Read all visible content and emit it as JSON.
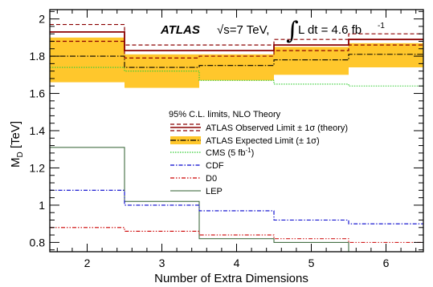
{
  "chart_data": {
    "type": "line",
    "xlabel": "Number of Extra Dimensions",
    "ylabel_main": "M",
    "ylabel_sub": "D",
    "ylabel_unit": " [TeV]",
    "xlim": [
      1.5,
      6.5
    ],
    "ylim": [
      0.75,
      2.05
    ],
    "x_ticks": [
      2,
      3,
      4,
      5,
      6
    ],
    "x_tick_labels": [
      "2",
      "3",
      "4",
      "5",
      "6"
    ],
    "y_ticks": [
      0.8,
      1.0,
      1.2,
      1.4,
      1.6,
      1.8,
      2.0
    ],
    "y_tick_labels": [
      "0.8",
      "1",
      "1.2",
      "1.4",
      "1.6",
      "1.8",
      "2"
    ],
    "header": {
      "experiment": "ATLAS",
      "energy": "√s=7 TeV,",
      "lumi_integral": "∫",
      "lumi": "L dt = 4.6 fb",
      "lumi_exp": "-1"
    },
    "legend_title": "95% C.L. limits, NLO Theory",
    "series": [
      {
        "name": "ATLAS Observed Limit ± 1σ (theory)",
        "key": "obs",
        "color": "#8b0000",
        "values": [
          1.93,
          1.83,
          1.83,
          1.86,
          1.89
        ],
        "theory_up": [
          1.97,
          1.86,
          1.86,
          1.89,
          1.92
        ],
        "theory_down": [
          1.88,
          1.79,
          1.8,
          1.83,
          1.86
        ]
      },
      {
        "name": "ATLAS Expected Limit (± 1σ)",
        "key": "exp",
        "color": "#000000",
        "band_color": "#ffc72c",
        "values": [
          1.8,
          1.74,
          1.75,
          1.78,
          1.81
        ],
        "band_up": [
          1.9,
          1.81,
          1.81,
          1.85,
          1.87
        ],
        "band_down": [
          1.66,
          1.63,
          1.67,
          1.7,
          1.74
        ]
      },
      {
        "name": "CMS (5 fb",
        "name_sup": "-1",
        "name_end": ")",
        "key": "cms",
        "color": "#33cc33",
        "values": [
          1.74,
          1.72,
          1.67,
          1.65,
          1.64
        ]
      },
      {
        "name": "CDF",
        "key": "cdf",
        "color": "#0000cc",
        "values": [
          1.08,
          1.0,
          0.97,
          0.92,
          0.9
        ]
      },
      {
        "name": "D0",
        "key": "d0",
        "color": "#cc0000",
        "values": [
          0.88,
          0.86,
          0.84,
          0.82,
          0.8
        ]
      },
      {
        "name": "LEP",
        "key": "lep",
        "color": "#2e5e2e",
        "values": [
          1.31,
          1.02,
          0.82,
          0.8
        ]
      }
    ],
    "grid": false,
    "legend_position": "center-right"
  }
}
